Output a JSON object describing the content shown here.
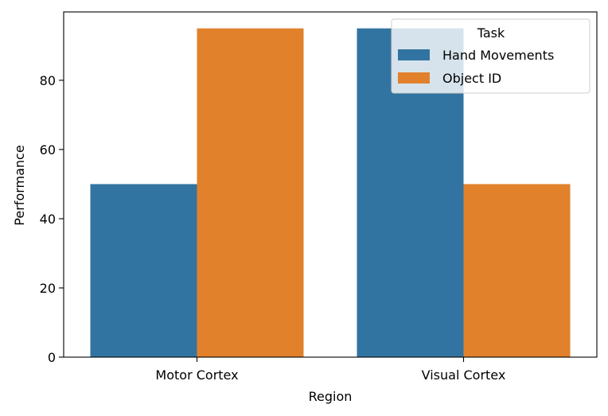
{
  "chart_data": {
    "type": "bar",
    "categories": [
      "Motor Cortex",
      "Visual Cortex"
    ],
    "series": [
      {
        "name": "Hand Movements",
        "values": [
          50,
          95
        ],
        "color": "#3274a1"
      },
      {
        "name": "Object ID",
        "values": [
          95,
          50
        ],
        "color": "#e1812c"
      }
    ],
    "xlabel": "Region",
    "ylabel": "Performance",
    "ylim": [
      0,
      99.75
    ],
    "yticks": [
      0,
      20,
      40,
      60,
      80
    ],
    "legend": {
      "title": "Task",
      "placement": "top-right"
    },
    "grid": false
  }
}
